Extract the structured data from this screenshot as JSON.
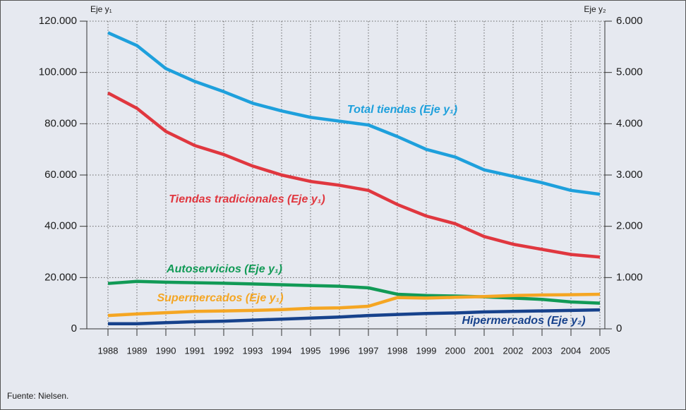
{
  "chart_data": {
    "type": "line",
    "y_axis_label": "Eje y₁",
    "y2_axis_label": "Eje y₂",
    "source": "Fuente: Nielsen.",
    "categories": [
      "1988",
      "1989",
      "1990",
      "1991",
      "1992",
      "1993",
      "1994",
      "1995",
      "1996",
      "1997",
      "1998",
      "1999",
      "2000",
      "2001",
      "2002",
      "2003",
      "2004",
      "2005"
    ],
    "ylim": [
      0,
      120000
    ],
    "yticks": [
      0,
      {
        "value": 20000,
        "label": "20.000"
      },
      {
        "value": 40000,
        "label": "40.000"
      },
      {
        "value": 60000,
        "label": "60.000"
      },
      {
        "value": 80000,
        "label": "80.000"
      },
      {
        "value": 100000,
        "label": "100.000"
      },
      {
        "value": 120000,
        "label": "120.000"
      }
    ],
    "y2lim": [
      0,
      6000
    ],
    "y2ticks": [
      0,
      {
        "value": 1000,
        "label": "1.000"
      },
      {
        "value": 2000,
        "label": "2.000"
      },
      {
        "value": 3000,
        "label": "3.000"
      },
      {
        "value": 4000,
        "label": "4.000"
      },
      {
        "value": 5000,
        "label": "5.000"
      },
      {
        "value": 6000,
        "label": "6.000"
      }
    ],
    "grid": true,
    "series": [
      {
        "name": "Total tiendas (Eje y₁)",
        "color": "#1ea0dc",
        "values": [
          115500,
          110500,
          101500,
          96500,
          92500,
          88000,
          85000,
          82500,
          81000,
          79500,
          75000,
          70000,
          67000,
          62000,
          59500,
          57000,
          54000,
          52500
        ]
      },
      {
        "name": "Tiendas tradicionales (Eje y₁)",
        "color": "#e0373f",
        "values": [
          92000,
          86000,
          77000,
          71500,
          68000,
          63500,
          60000,
          57500,
          56000,
          54000,
          48500,
          44000,
          41000,
          36000,
          33000,
          31000,
          29000,
          28000
        ]
      },
      {
        "name": "Autoservicios (Eje y₁)",
        "color": "#119a56",
        "values": [
          17700,
          18500,
          18200,
          18000,
          17800,
          17500,
          17200,
          16900,
          16600,
          16000,
          13500,
          13000,
          12800,
          12500,
          12000,
          11500,
          10500,
          10000
        ]
      },
      {
        "name": "Supermercados (Eje y₁)",
        "color": "#f5a623",
        "values": [
          5200,
          5800,
          6300,
          6800,
          7000,
          7200,
          7500,
          8000,
          8200,
          8800,
          12200,
          12000,
          12300,
          12600,
          13000,
          13200,
          13300,
          13500
        ]
      },
      {
        "name": "Hipermercados (Eje y₂)",
        "color": "#17428c",
        "axis": "y2",
        "values": [
          100,
          100,
          120,
          140,
          150,
          170,
          190,
          210,
          230,
          260,
          280,
          300,
          310,
          330,
          340,
          350,
          360,
          370
        ]
      }
    ]
  }
}
